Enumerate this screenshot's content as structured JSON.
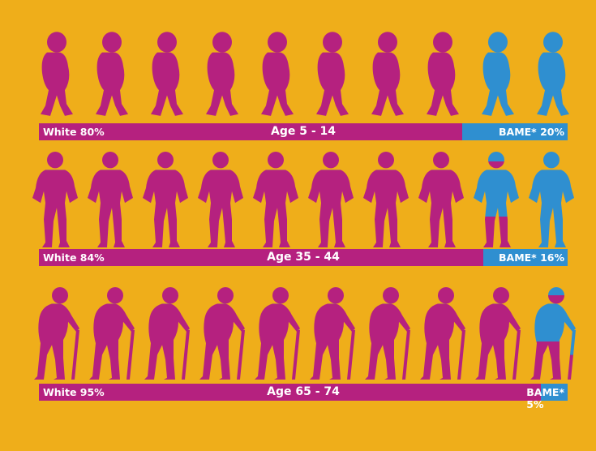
{
  "colors": {
    "background": "#EFAE1A",
    "white_group": "#B5217F",
    "bame_group": "#2F8FD0"
  },
  "chart_data": {
    "type": "pictogram",
    "icons_per_row": 10,
    "rows": [
      {
        "title": "Age 5 - 14",
        "icon": "child-figure-icon",
        "white_label": "White 80%",
        "bame_label": "BAME* 20%",
        "white_pct": 80,
        "bame_pct": 20
      },
      {
        "title": "Age 35 - 44",
        "icon": "adult-figure-icon",
        "white_label": "White 84%",
        "bame_label": "BAME* 16%",
        "white_pct": 84,
        "bame_pct": 16
      },
      {
        "title": "Age 65 - 74",
        "icon": "elderly-with-cane-icon",
        "white_label": "White 95%",
        "bame_label": "BAME* 5%",
        "white_pct": 95,
        "bame_pct": 5
      }
    ]
  }
}
